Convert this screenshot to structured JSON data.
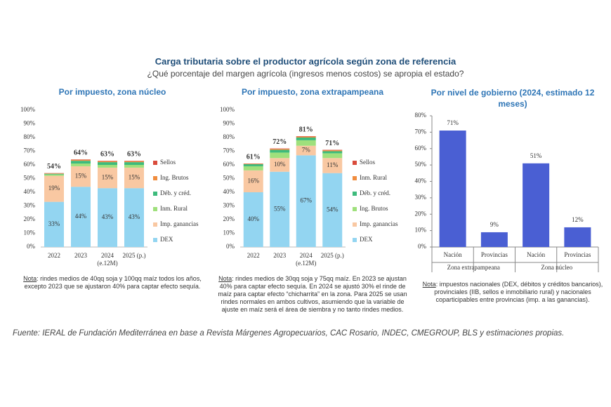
{
  "title": "Carga tributaria sobre el productor agrícola según zona de referencia",
  "subtitle": "¿Qué porcentaje del margen agrícola (ingresos menos costos) se apropia el estado?",
  "source": "Fuente: IERAL de Fundación Mediterránea en base a Revista Márgenes Agropecuarios, CAC Rosario, INDEC, CMEGROUP, BLS y estimaciones propias.",
  "chart_data": [
    {
      "type": "stacked_bar",
      "title": "Por impuesto, zona núcleo",
      "categories": [
        "2022",
        "2023",
        "2024\n(e.12M)",
        "2025 (p.)"
      ],
      "series": [
        {
          "name": "DEX",
          "color": "#93d5f1",
          "values": [
            33,
            44,
            43,
            43
          ],
          "value_labels": [
            "33%",
            "44%",
            "43%",
            "43%"
          ]
        },
        {
          "name": "Imp. ganancias",
          "color": "#f9c8a2",
          "values": [
            19,
            15,
            15,
            15
          ],
          "value_labels": [
            "19%",
            "15%",
            "15%",
            "15%"
          ]
        },
        {
          "name": "Inm. Rural",
          "color": "#9fe07c",
          "values": [
            1,
            2,
            2,
            2
          ]
        },
        {
          "name": "Déb. y créd.",
          "color": "#3dbb7c",
          "values": [
            0.5,
            2,
            2,
            2
          ]
        },
        {
          "name": "Ing. Brutos",
          "color": "#f08c3e",
          "values": [
            0.3,
            0.7,
            0.7,
            0.7
          ]
        },
        {
          "name": "Sellos",
          "color": "#d94b3b",
          "values": [
            0.2,
            0.3,
            0.3,
            0.3
          ]
        }
      ],
      "totals": [
        54,
        64,
        63,
        63
      ],
      "total_labels": [
        "54%",
        "64%",
        "63%",
        "63%"
      ],
      "ylim": [
        0,
        100
      ],
      "yticks": [
        {
          "value": 0,
          "label": "0%"
        },
        {
          "value": 10,
          "label": "10%"
        },
        {
          "value": 20,
          "label": "20%"
        },
        {
          "value": 30,
          "label": "30%"
        },
        {
          "value": 40,
          "label": "40%"
        },
        {
          "value": 50,
          "label": "50%"
        },
        {
          "value": 60,
          "label": "60%"
        },
        {
          "value": 70,
          "label": "70%"
        },
        {
          "value": 80,
          "label": "80%"
        },
        {
          "value": 90,
          "label": "90%"
        },
        {
          "value": 100,
          "label": "100%"
        }
      ],
      "note_label": "Nota",
      "note": ": rindes medios de 40qq soja y 100qq maíz todos los años, excepto 2023 que se ajustaron 40% para captar efecto sequía."
    },
    {
      "type": "stacked_bar",
      "title": "Por impuesto, zona extrapampeana",
      "categories": [
        "2022",
        "2023",
        "2024\n(e.12M)",
        "2025 (p.)"
      ],
      "series": [
        {
          "name": "DEX",
          "color": "#93d5f1",
          "values": [
            40,
            55,
            67,
            54
          ],
          "value_labels": [
            "40%",
            "55%",
            "67%",
            "54%"
          ]
        },
        {
          "name": "Imp. ganancias",
          "color": "#f9c8a2",
          "values": [
            16,
            10,
            7,
            11
          ],
          "value_labels": [
            "16%",
            "10%",
            "7%",
            "11%"
          ]
        },
        {
          "name": "Ing. Brutos",
          "color": "#9fe07c",
          "values": [
            3,
            4,
            4,
            3.5
          ]
        },
        {
          "name": "Déb. y créd.",
          "color": "#3dbb7c",
          "values": [
            1.5,
            2,
            2,
            1.5
          ]
        },
        {
          "name": "Inm. Rural",
          "color": "#f08c3e",
          "values": [
            0.3,
            0.7,
            0.7,
            0.7
          ]
        },
        {
          "name": "Sellos",
          "color": "#d94b3b",
          "values": [
            0.2,
            0.3,
            0.3,
            0.3
          ]
        }
      ],
      "totals": [
        61,
        72,
        81,
        71
      ],
      "total_labels": [
        "61%",
        "72%",
        "81%",
        "71%"
      ],
      "ylim": [
        0,
        100
      ],
      "yticks": [
        {
          "value": 0,
          "label": "0%"
        },
        {
          "value": 10,
          "label": "10%"
        },
        {
          "value": 20,
          "label": "20%"
        },
        {
          "value": 30,
          "label": "30%"
        },
        {
          "value": 40,
          "label": "40%"
        },
        {
          "value": 50,
          "label": "50%"
        },
        {
          "value": 60,
          "label": "60%"
        },
        {
          "value": 70,
          "label": "70%"
        },
        {
          "value": 80,
          "label": "80%"
        },
        {
          "value": 90,
          "label": "90%"
        },
        {
          "value": 100,
          "label": "100%"
        }
      ],
      "note_label": "Nota",
      "note": ": rindes medios de 30qq soja y 75qq maíz. En 2023 se ajustan 40% para captar efecto sequía. En 2024 se ajustó 30% el rinde de maíz para captar efecto “chicharrita” en la zona. Para 2025 se usan rindes normales en ambos cultivos, asumiendo que la variable de ajuste en maíz será el área de siembra y no tanto rindes medios."
    },
    {
      "type": "bar",
      "title": "Por nivel de gobierno (2024, estimado 12 meses)",
      "categories": [
        "Nación",
        "Provincias",
        "Nación",
        "Provincias"
      ],
      "groups": [
        "Zona extrapampeana",
        "Zona núcleo"
      ],
      "values": [
        71,
        9,
        51,
        12
      ],
      "value_labels": [
        "71%",
        "9%",
        "51%",
        "12%"
      ],
      "color": "#4a5fd3",
      "ylim": [
        0,
        80
      ],
      "yticks": [
        {
          "value": 0,
          "label": "0%"
        },
        {
          "value": 10,
          "label": "10%"
        },
        {
          "value": 20,
          "label": "20%"
        },
        {
          "value": 30,
          "label": "30%"
        },
        {
          "value": 40,
          "label": "40%"
        },
        {
          "value": 50,
          "label": "50%"
        },
        {
          "value": 60,
          "label": "60%"
        },
        {
          "value": 70,
          "label": "70%"
        },
        {
          "value": 80,
          "label": "80%"
        }
      ],
      "note_label": "Nota",
      "note": ": impuestos nacionales (DEX, débitos y créditos bancarios), provinciales (IIB, sellos e inmobiliario rural) y nacionales coparticipables entre provincias (imp. a las ganancias)."
    }
  ]
}
